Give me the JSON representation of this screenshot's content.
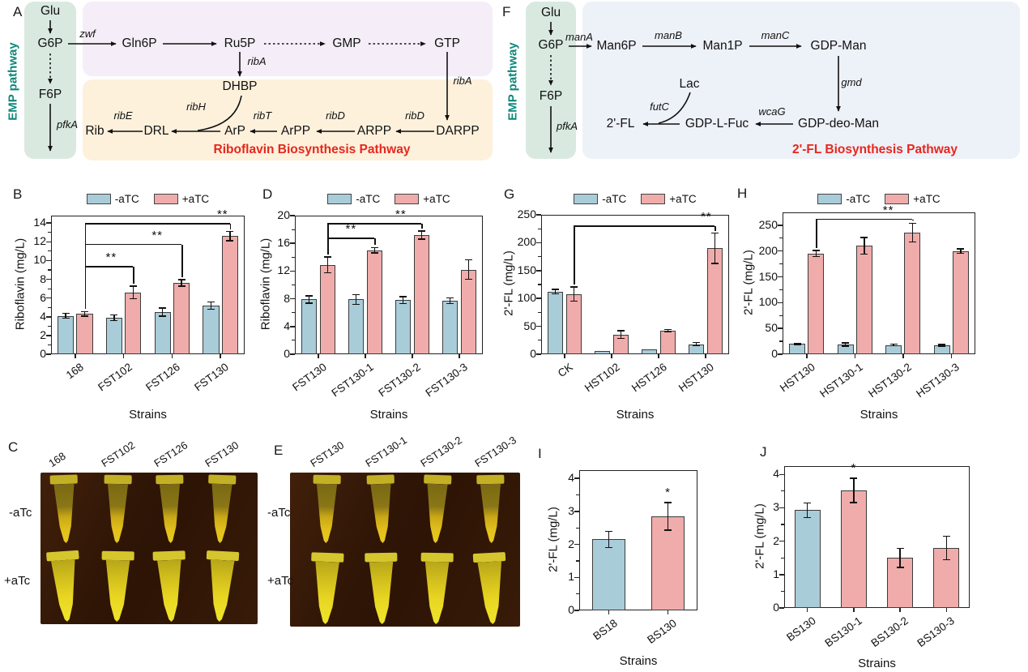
{
  "letters": {
    "A": "A",
    "B": "B",
    "C": "C",
    "D": "D",
    "E": "E",
    "F": "F",
    "G": "G",
    "H": "H",
    "I": "I",
    "J": "J"
  },
  "colors": {
    "minus_atc": "#a9ccd9",
    "plus_atc": "#efacab",
    "teal": "#0c8779",
    "red": "#e8261d"
  },
  "pathwayA": {
    "emp_label": "EMP pathway",
    "title": "Riboflavin Biosynthesis Pathway",
    "nodes": {
      "glu": "Glu",
      "g6p": "G6P",
      "f6p": "F6P",
      "gln6p": "Gln6P",
      "ru5p": "Ru5P",
      "gmp": "GMP",
      "gtp": "GTP",
      "dhbp": "DHBP",
      "rib": "Rib",
      "drl": "DRL",
      "arp": "ArP",
      "arpp": "ArPP",
      "arpp2": "ARPP",
      "darpp": "DARPP"
    },
    "enzymes": {
      "zwf": "zwf",
      "pfka": "pfkA",
      "riba1": "ribA",
      "riba2": "ribA",
      "ribh": "ribH",
      "ribe": "ribE",
      "ribt": "ribT",
      "ribd1": "ribD",
      "ribd2": "ribD"
    }
  },
  "pathwayF": {
    "emp_label": "EMP pathway",
    "title": "2'-FL Biosynthesis Pathway",
    "nodes": {
      "glu": "Glu",
      "g6p": "G6P",
      "f6p": "F6P",
      "man6p": "Man6P",
      "man1p": "Man1P",
      "gdpman": "GDP-Man",
      "gdpdeoman": "GDP-deo-Man",
      "gdplfuc": "GDP-L-Fuc",
      "fl": "2'-FL",
      "lac": "Lac"
    },
    "enzymes": {
      "mana": "manA",
      "manb": "manB",
      "manc": "manC",
      "gmd": "gmd",
      "wcag": "wcaG",
      "futc": "futC",
      "pfka": "pfkA"
    }
  },
  "photos": {
    "C": {
      "rows": [
        "-aTc",
        "+aTc"
      ],
      "cols": [
        "168",
        "FST102",
        "FST126",
        "FST130"
      ]
    },
    "E": {
      "rows": [
        "-aTc",
        "+aTc"
      ],
      "cols": [
        "FST130",
        "FST130-1",
        "FST130-2",
        "FST130-3"
      ]
    }
  },
  "chart_data": [
    {
      "id": "B",
      "type": "bar",
      "title": "",
      "ylabel": "Riboflavin (mg/L)",
      "xlabel": "Strains",
      "categories": [
        "168",
        "FST102",
        "FST126",
        "FST130"
      ],
      "series": [
        {
          "name": "-aTC",
          "color": "#a9ccd9",
          "values": [
            4.1,
            3.9,
            4.5,
            5.2
          ],
          "errors": [
            0.25,
            0.3,
            0.45,
            0.4
          ]
        },
        {
          "name": "+aTC",
          "color": "#efacab",
          "values": [
            4.3,
            6.6,
            7.6,
            12.6
          ],
          "errors": [
            0.25,
            0.65,
            0.35,
            0.5
          ]
        }
      ],
      "ylim": [
        0,
        14.8
      ],
      "yticks": [
        0,
        2,
        4,
        6,
        8,
        10,
        12,
        14
      ],
      "grid": false,
      "legend_position": "top",
      "brackets": [
        {
          "from": [
            0,
            1
          ],
          "to": [
            1,
            1
          ],
          "y": 9.4,
          "label": "**",
          "label_x": 0.55
        },
        {
          "from": [
            0,
            1
          ],
          "to": [
            2,
            1
          ],
          "y": 11.8,
          "label": "**",
          "label_x": 0.75
        },
        {
          "from": [
            0,
            1
          ],
          "to": [
            3,
            1
          ],
          "y": 14.0,
          "label": "**",
          "label_x": 0.95
        }
      ]
    },
    {
      "id": "D",
      "type": "bar",
      "title": "",
      "ylabel": "Riboflavin (mg/L)",
      "xlabel": "Strains",
      "categories": [
        "FST130",
        "FST130-1",
        "FST130-2",
        "FST130-3"
      ],
      "series": [
        {
          "name": "-aTC",
          "color": "#a9ccd9",
          "values": [
            7.9,
            7.9,
            7.8,
            7.7
          ],
          "errors": [
            0.55,
            0.7,
            0.5,
            0.4
          ]
        },
        {
          "name": "+aTC",
          "color": "#efacab",
          "values": [
            12.9,
            15.0,
            17.2,
            12.2
          ],
          "errors": [
            1.15,
            0.4,
            0.6,
            1.4
          ]
        }
      ],
      "ylim": [
        0,
        20
      ],
      "yticks": [
        0,
        4,
        8,
        12,
        16,
        20
      ],
      "grid": false,
      "legend_position": "top",
      "brackets": [
        {
          "from": [
            0,
            1
          ],
          "to": [
            1,
            1
          ],
          "y": 16.8,
          "label": "**",
          "label_x": 0.5
        },
        {
          "from": [
            0,
            1
          ],
          "to": [
            2,
            1
          ],
          "y": 18.9,
          "label": "**",
          "label_x": 0.78
        }
      ]
    },
    {
      "id": "G",
      "type": "bar",
      "title": "",
      "ylabel": "2'-FL (mg/L)",
      "xlabel": "Strains",
      "categories": [
        "CK",
        "HST102",
        "HST126",
        "HST130"
      ],
      "series": [
        {
          "name": "-aTC",
          "color": "#a9ccd9",
          "values": [
            112,
            6,
            8,
            18
          ],
          "errors": [
            4,
            0,
            0,
            3
          ]
        },
        {
          "name": "+aTC",
          "color": "#efacab",
          "values": [
            108,
            35,
            42,
            190
          ],
          "errors": [
            13,
            7,
            2,
            27
          ]
        }
      ],
      "ylim": [
        0,
        250
      ],
      "yticks": [
        0,
        50,
        100,
        150,
        200,
        250
      ],
      "grid": false,
      "legend_position": "top",
      "brackets": [
        {
          "from": [
            0,
            1
          ],
          "to": [
            3,
            1
          ],
          "y": 231,
          "label": "**",
          "label_x": 0.94
        }
      ]
    },
    {
      "id": "H",
      "type": "bar",
      "title": "",
      "ylabel": "2'-FL (mg/L)",
      "xlabel": "Strains",
      "categories": [
        "HST130",
        "HST130-1",
        "HST130-2",
        "HST130-3"
      ],
      "series": [
        {
          "name": "-aTC",
          "color": "#a9ccd9",
          "values": [
            20,
            19,
            18,
            17
          ],
          "errors": [
            1.5,
            3,
            1.5,
            1.5
          ]
        },
        {
          "name": "+aTC",
          "color": "#efacab",
          "values": [
            195,
            210,
            236,
            200
          ],
          "errors": [
            6,
            16,
            18,
            4
          ]
        }
      ],
      "ylim": [
        0,
        275
      ],
      "yticks": [
        0,
        50,
        100,
        150,
        200,
        250
      ],
      "grid": false,
      "legend_position": "top",
      "brackets": [
        {
          "from": [
            0,
            1
          ],
          "to": [
            2,
            1
          ],
          "y": 263,
          "label": "**",
          "label_x": 0.75
        }
      ]
    },
    {
      "id": "I",
      "type": "bar",
      "title": "",
      "ylabel": "2'-FL (mg/L)",
      "xlabel": "Strains",
      "categories": [
        "BS18",
        "BS130"
      ],
      "values": [
        2.15,
        2.85
      ],
      "errors": [
        0.25,
        0.42
      ],
      "bar_colors": [
        "#a9ccd9",
        "#efacab"
      ],
      "ylim": [
        0,
        4.25
      ],
      "yticks": [
        0,
        1,
        2,
        3,
        4
      ],
      "grid": false,
      "legend_position": "none",
      "stars": [
        {
          "cat": 1,
          "label": "*"
        }
      ]
    },
    {
      "id": "J",
      "type": "bar",
      "title": "",
      "ylabel": "2'-FL (mg/L)",
      "xlabel": "Strains",
      "categories": [
        "BS130",
        "BS130-1",
        "BS130-2",
        "BS130-3"
      ],
      "values": [
        2.93,
        3.52,
        1.5,
        1.8
      ],
      "errors": [
        0.22,
        0.36,
        0.28,
        0.35
      ],
      "bar_colors": [
        "#a9ccd9",
        "#efacab",
        "#efacab",
        "#efacab"
      ],
      "ylim": [
        0,
        4.25
      ],
      "yticks": [
        0,
        1,
        2,
        3,
        4
      ],
      "grid": false,
      "legend_position": "none",
      "stars": [
        {
          "cat": 1,
          "label": "*"
        }
      ]
    }
  ]
}
